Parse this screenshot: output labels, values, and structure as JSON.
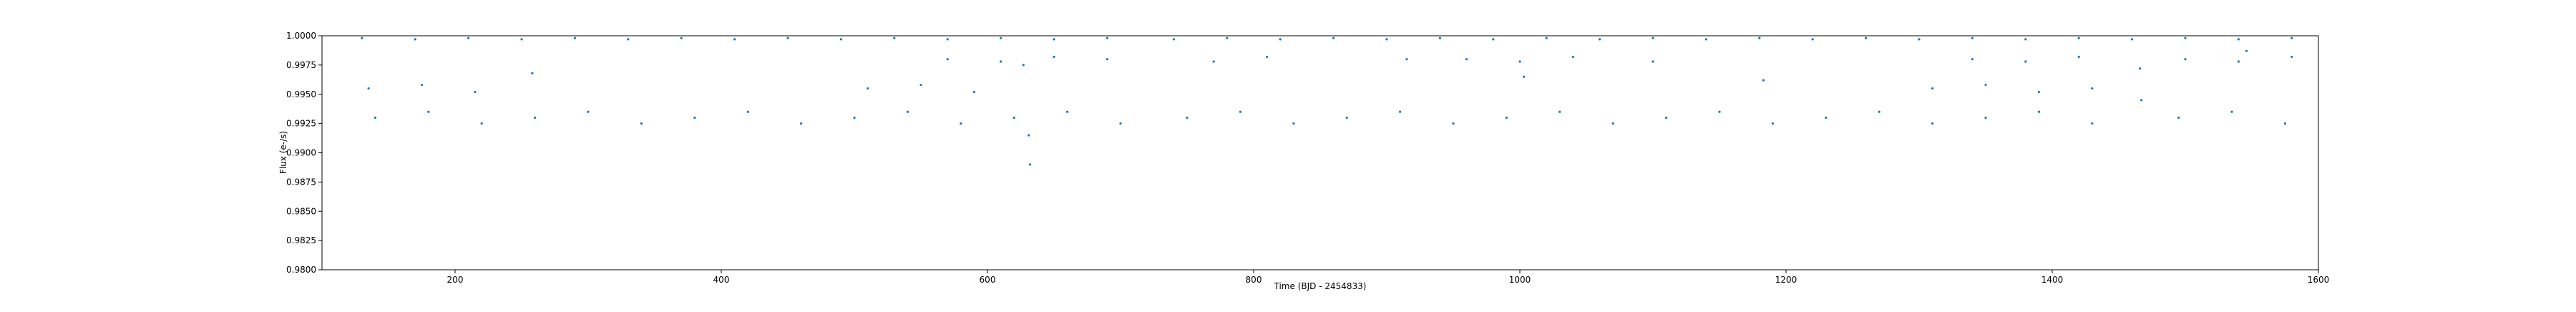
{
  "chart_data": {
    "type": "scatter",
    "xlabel": "Time (BJD - 2454833)",
    "ylabel": "Flux (e-/s)",
    "xlim": [
      100,
      1600
    ],
    "ylim": [
      0.98,
      1.0
    ],
    "xticks": [
      200,
      400,
      600,
      800,
      1000,
      1200,
      1400,
      1600
    ],
    "yticks": [
      {
        "value": 0.98,
        "label": "0.9800"
      },
      {
        "value": 0.9825,
        "label": "0.9825"
      },
      {
        "value": 0.985,
        "label": "0.9850"
      },
      {
        "value": 0.9875,
        "label": "0.9875"
      },
      {
        "value": 0.99,
        "label": "0.9900"
      },
      {
        "value": 0.9925,
        "label": "0.9925"
      },
      {
        "value": 0.995,
        "label": "0.9950"
      },
      {
        "value": 0.9975,
        "label": "0.9975"
      },
      {
        "value": 1.0,
        "label": "1.0000"
      }
    ],
    "x": [
      130,
      170,
      210,
      250,
      290,
      330,
      370,
      410,
      450,
      490,
      530,
      570,
      610,
      650,
      690,
      740,
      780,
      820,
      860,
      900,
      940,
      980,
      1020,
      1060,
      1100,
      1140,
      1180,
      1220,
      1260,
      1300,
      1340,
      1380,
      1420,
      1460,
      1500,
      1540,
      1580,
      258,
      627,
      631,
      632,
      915,
      1003,
      1100,
      1183,
      1466,
      1467,
      1546,
      140,
      180,
      220,
      260,
      300,
      340,
      380,
      420,
      460,
      500,
      540,
      580,
      620,
      660,
      700,
      750,
      790,
      830,
      870,
      910,
      950,
      990,
      1030,
      1070,
      1110,
      1150,
      1190,
      1230,
      1270,
      1310,
      1350,
      1390,
      1430,
      1495,
      1535,
      1575,
      135,
      175,
      215,
      510,
      550,
      590,
      1310,
      1350,
      1390,
      1430,
      570,
      610,
      650,
      690,
      770,
      810,
      960,
      1000,
      1040,
      1340,
      1380,
      1420,
      1500,
      1540,
      1580
    ],
    "series": [
      {
        "color": "#1f77b4",
        "values": [
          0.9998,
          0.9997,
          0.9998,
          0.9997,
          0.9998,
          0.9997,
          0.9998,
          0.9997,
          0.9998,
          0.9997,
          0.9998,
          0.9997,
          0.9998,
          0.9997,
          0.9998,
          0.9997,
          0.9998,
          0.9997,
          0.9998,
          0.9997,
          0.9998,
          0.9997,
          0.9998,
          0.9997,
          0.9998,
          0.9997,
          0.9998,
          0.9997,
          0.9998,
          0.9997,
          0.9998,
          0.9997,
          0.9998,
          0.9997,
          0.9998,
          0.9997,
          0.9998,
          0.9968,
          0.9975,
          0.9915,
          0.989,
          0.998,
          0.9965,
          0.9978,
          0.9962,
          0.9972,
          0.9945,
          0.9987,
          0.993,
          0.9935,
          0.9925,
          0.993,
          0.9935,
          0.9925,
          0.993,
          0.9935,
          0.9925,
          0.993,
          0.9935,
          0.9925,
          0.993,
          0.9935,
          0.9925,
          0.993,
          0.9935,
          0.9925,
          0.993,
          0.9935,
          0.9925,
          0.993,
          0.9935,
          0.9925,
          0.993,
          0.9935,
          0.9925,
          0.993,
          0.9935,
          0.9925,
          0.993,
          0.9935,
          0.9925,
          0.993,
          0.9935,
          0.9925,
          0.9955,
          0.9958,
          0.9952,
          0.9955,
          0.9958,
          0.9952,
          0.9955,
          0.9958,
          0.9952,
          0.9955,
          0.998,
          0.9978,
          0.9982,
          0.998,
          0.9978,
          0.9982,
          0.998,
          0.9978,
          0.9982,
          0.998,
          0.9978,
          0.9982,
          0.998,
          0.9978,
          0.9982
        ]
      }
    ]
  }
}
